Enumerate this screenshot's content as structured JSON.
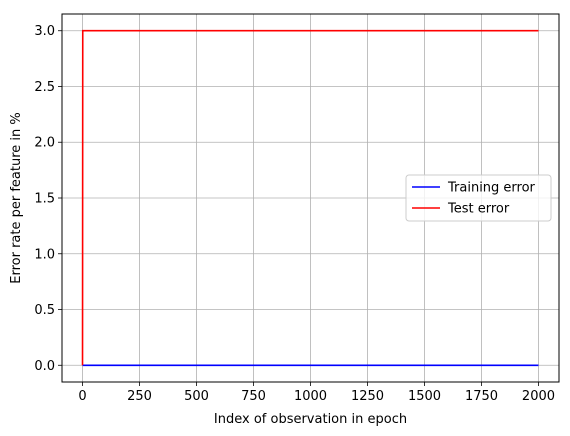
{
  "chart_data": {
    "type": "line",
    "title": "",
    "xlabel": "Index of observation in epoch",
    "ylabel": "Error rate per feature in %",
    "xlim": [
      -90,
      2090
    ],
    "ylim": [
      -0.15,
      3.15
    ],
    "xticks": [
      0,
      250,
      500,
      750,
      1000,
      1250,
      1500,
      1750,
      2000
    ],
    "xtick_labels": [
      "0",
      "250",
      "500",
      "750",
      "1000",
      "1250",
      "1500",
      "1750",
      "2000"
    ],
    "yticks": [
      0.0,
      0.5,
      1.0,
      1.5,
      2.0,
      2.5,
      3.0
    ],
    "ytick_labels": [
      "0.0",
      "0.5",
      "1.0",
      "1.5",
      "2.0",
      "2.5",
      "3.0"
    ],
    "grid": true,
    "legend_position": "center-right",
    "series": [
      {
        "name": "Training error",
        "color": "#0000ff",
        "x": [
          0,
          2000
        ],
        "y": [
          0,
          0
        ]
      },
      {
        "name": "Test error",
        "color": "#ff0000",
        "x": [
          0,
          1,
          2000
        ],
        "y": [
          0,
          3,
          3
        ]
      }
    ]
  }
}
